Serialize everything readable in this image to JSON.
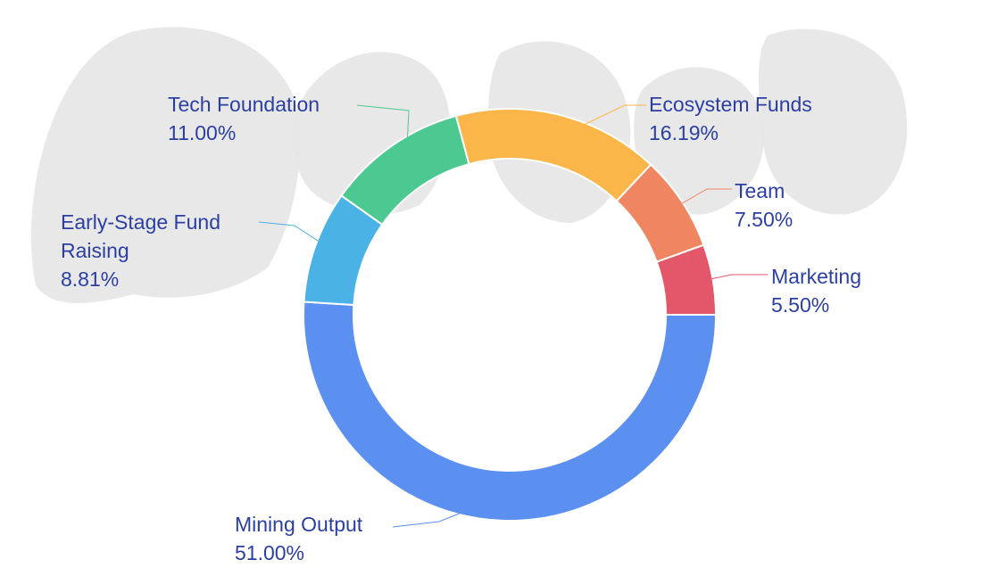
{
  "chart_data": {
    "type": "pie",
    "variant": "donut",
    "title": "",
    "legend": "none",
    "slices": [
      {
        "label_lines": [
          "Mining Output"
        ],
        "value_text": "51.00%",
        "value": 51.0,
        "color": "#5b8ff0"
      },
      {
        "label_lines": [
          "Early-Stage Fund",
          "Raising"
        ],
        "value_text": "8.81%",
        "value": 8.81,
        "color": "#4bb2e6"
      },
      {
        "label_lines": [
          "Tech Foundation"
        ],
        "value_text": "11.00%",
        "value": 11.0,
        "color": "#4cc891"
      },
      {
        "label_lines": [
          "Ecosystem Funds"
        ],
        "value_text": "16.19%",
        "value": 16.19,
        "color": "#fbb64a"
      },
      {
        "label_lines": [
          "Team"
        ],
        "value_text": "7.50%",
        "value": 7.5,
        "color": "#ef8661"
      },
      {
        "label_lines": [
          "Marketing"
        ],
        "value_text": "5.50%",
        "value": 5.5,
        "color": "#e4576b"
      }
    ]
  }
}
